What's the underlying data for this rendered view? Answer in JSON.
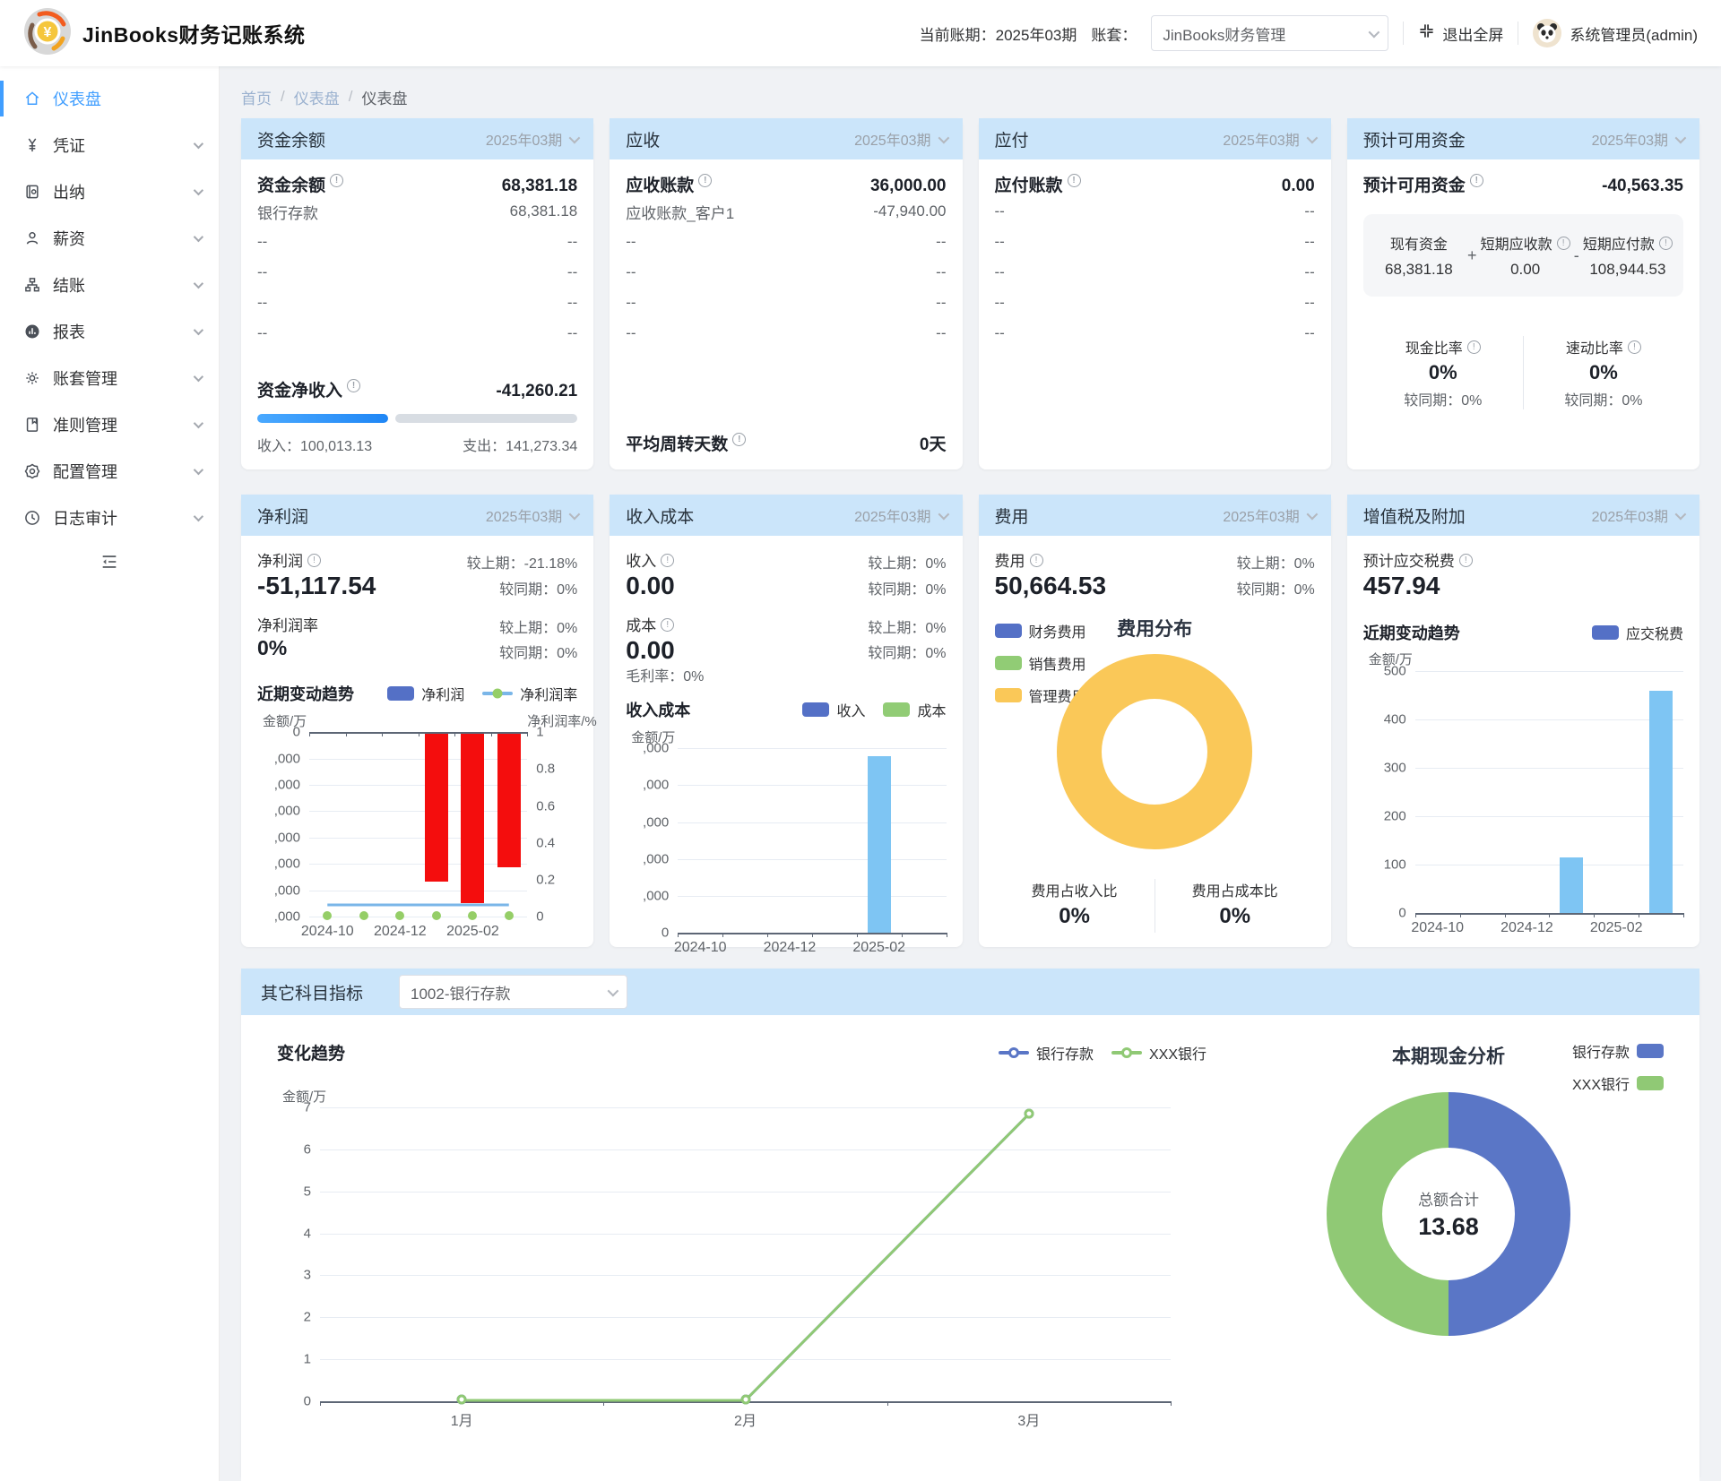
{
  "header": {
    "app_title": "JinBooks财务记账系统",
    "current_period_label": "当前账期：",
    "current_period": "2025年03期",
    "book_label": "账套：",
    "book_value": "JinBooks财务管理",
    "exit_fullscreen": "退出全屏",
    "user_name": "系统管理员(admin)"
  },
  "sidebar": {
    "items": [
      {
        "label": "仪表盘"
      },
      {
        "label": "凭证"
      },
      {
        "label": "出纳"
      },
      {
        "label": "薪资"
      },
      {
        "label": "结账"
      },
      {
        "label": "报表"
      },
      {
        "label": "账套管理"
      },
      {
        "label": "准则管理"
      },
      {
        "label": "配置管理"
      },
      {
        "label": "日志审计"
      }
    ]
  },
  "breadcrumb": {
    "home": "首页",
    "sep1": "/",
    "level1": "仪表盘",
    "sep2": "/",
    "current": "仪表盘"
  },
  "cards": {
    "fund": {
      "title": "资金余额",
      "period": "2025年03期",
      "main_label": "资金余额",
      "main_value": "68,381.18",
      "rows": [
        {
          "label": "银行存款",
          "value": "68,381.18"
        },
        {
          "label": "--",
          "value": "--"
        },
        {
          "label": "--",
          "value": "--"
        },
        {
          "label": "--",
          "value": "--"
        },
        {
          "label": "--",
          "value": "--"
        }
      ],
      "net_label": "资金净收入",
      "net_value": "-41,260.21",
      "income_label": "收入：",
      "income_value": "100,013.13",
      "expense_label": "支出：",
      "expense_value": "141,273.34",
      "income_pct": 41
    },
    "receivable": {
      "title": "应收",
      "period": "2025年03期",
      "main_label": "应收账款",
      "main_value": "36,000.00",
      "rows": [
        {
          "label": "应收账款_客户1",
          "value": "-47,940.00"
        },
        {
          "label": "--",
          "value": "--"
        },
        {
          "label": "--",
          "value": "--"
        },
        {
          "label": "--",
          "value": "--"
        },
        {
          "label": "--",
          "value": "--"
        }
      ],
      "turnover_label": "平均周转天数",
      "turnover_value": "0天"
    },
    "payable": {
      "title": "应付",
      "period": "2025年03期",
      "main_label": "应付账款",
      "main_value": "0.00",
      "rows": [
        {
          "label": "--",
          "value": "--"
        },
        {
          "label": "--",
          "value": "--"
        },
        {
          "label": "--",
          "value": "--"
        },
        {
          "label": "--",
          "value": "--"
        },
        {
          "label": "--",
          "value": "--"
        }
      ]
    },
    "available": {
      "title": "预计可用资金",
      "period": "2025年03期",
      "main_label": "预计可用资金",
      "main_value": "-40,563.35",
      "formula": {
        "a_label": "现有资金",
        "a_value": "68,381.18",
        "plus": "+",
        "b_label": "短期应收款",
        "b_value": "0.00",
        "minus": "-",
        "c_label": "短期应付款",
        "c_value": "108,944.53"
      },
      "cash_ratio_label": "现金比率",
      "cash_ratio_value": "0%",
      "cash_ratio_sub": "较同期：0%",
      "quick_ratio_label": "速动比率",
      "quick_ratio_value": "0%",
      "quick_ratio_sub": "较同期：0%"
    },
    "profit": {
      "title": "净利润",
      "period": "2025年03期",
      "main_label": "净利润",
      "main_value": "-51,117.54",
      "main_stat1": "较上期：-21.18%",
      "main_stat2": "较同期：0%",
      "rate_label": "净利润率",
      "rate_value": "0%",
      "rate_stat1": "较上期：0%",
      "rate_stat2": "较同期：0%",
      "trend_title": "近期变动趋势",
      "legend1": "净利润",
      "legend2": "净利润率"
    },
    "income_cost": {
      "title": "收入成本",
      "period": "2025年03期",
      "income_label": "收入",
      "income_value": "0.00",
      "income_stat1": "较上期：0%",
      "income_stat2": "较同期：0%",
      "cost_label": "成本",
      "cost_value": "0.00",
      "cost_stat1": "较上期：0%",
      "cost_stat2": "较同期：0%",
      "margin_label": "毛利率：0%",
      "trend_title": "收入成本",
      "legend1": "收入",
      "legend2": "成本"
    },
    "expense": {
      "title": "费用",
      "period": "2025年03期",
      "main_label": "费用",
      "main_value": "50,664.53",
      "stat1": "较上期：0%",
      "stat2": "较同期：0%",
      "legend1": "财务费用",
      "legend2": "销售费用",
      "legend3": "管理费用",
      "donut_title": "费用分布",
      "ratio1_label": "费用占收入比",
      "ratio1_value": "0%",
      "ratio2_label": "费用占成本比",
      "ratio2_value": "0%"
    },
    "tax": {
      "title": "增值税及附加",
      "period": "2025年03期",
      "main_label": "预计应交税费",
      "main_value": "457.94",
      "trend_title": "近期变动趋势",
      "legend1": "应交税费"
    }
  },
  "other": {
    "title": "其它科目指标",
    "select_value": "1002-银行存款",
    "trend_title": "变化趋势",
    "legend1": "银行存款",
    "legend2": "XXX银行",
    "donut_title": "本期现金分析",
    "donut_legend1": "银行存款",
    "donut_legend2": "XXX银行",
    "center_label": "总额合计",
    "center_value": "13.68"
  },
  "colors": {
    "accent": "#409eff",
    "card_header_bg": "#cbe5fa",
    "bar_red": "#f40d0d",
    "bar_lightblue": "#7ec5f3",
    "series_blue": "#5470c6",
    "series_green": "#91cc75",
    "series_yellow": "#fac858",
    "donut_blue": "#5a76c6",
    "donut_green": "#90c975",
    "profit_line": "#7ab6e8",
    "profit_dot": "#95ce67"
  },
  "chart_data": [
    {
      "id": "profit_trend",
      "type": "bar",
      "categories": [
        "2024-10",
        "2024-11",
        "2024-12",
        "2025-01",
        "2025-02",
        "2025-03"
      ],
      "series": [
        {
          "name": "净利润",
          "color": "#f40d0d",
          "values": [
            0,
            0,
            0,
            -56700,
            -64854,
            -51117.54
          ]
        }
      ],
      "line_series": {
        "name": "净利润率",
        "values": [
          0,
          0,
          0,
          0,
          0,
          0
        ],
        "line_color": "#7ab6e8",
        "dot_color": "#95ce67",
        "dot_style": "solid",
        "min": 0,
        "max": 1
      },
      "left_axis": {
        "title": "金额/万",
        "tick_labels": [
          "0",
          ",000",
          ",000",
          ",000",
          ",000",
          ",000",
          ",000",
          ",000"
        ],
        "min": -70000,
        "max": 0
      },
      "right_axis": {
        "title": "净利润率/%",
        "tick_labels": [
          "1",
          "0.8",
          "0.6",
          "0.4",
          "0.2",
          "0"
        ]
      },
      "x_ticks": [
        {
          "slot": 0,
          "label": "2024-10"
        },
        {
          "slot": 2,
          "label": "2024-12"
        },
        {
          "slot": 4,
          "label": "2025-02"
        }
      ],
      "baseline": "top",
      "grid": true,
      "legend_position": "top-right"
    },
    {
      "id": "income_cost_trend",
      "type": "bar",
      "categories": [
        "2024-10",
        "2024-11",
        "2024-12",
        "2025-01",
        "2025-02",
        "2025-03"
      ],
      "series": [
        {
          "name": "收入",
          "color": "#7ec5f3",
          "values": [
            0,
            0,
            0,
            0,
            47940,
            0
          ]
        },
        {
          "name": "成本",
          "color": "#91cc75",
          "values": [
            0,
            0,
            0,
            0,
            0,
            0
          ]
        }
      ],
      "left_axis": {
        "title": "金额/万",
        "tick_labels": [
          ",000",
          ",000",
          ",000",
          ",000",
          ",000",
          "0"
        ],
        "min": 0,
        "max": 50000
      },
      "x_ticks": [
        {
          "slot": 0,
          "label": "2024-10"
        },
        {
          "slot": 2,
          "label": "2024-12"
        },
        {
          "slot": 4,
          "label": "2025-02"
        }
      ],
      "baseline": "bottom",
      "grid": true
    },
    {
      "id": "expense_distribution",
      "type": "pie",
      "title": "费用分布",
      "slices": [
        {
          "name": "财务费用",
          "value": 0,
          "color": "#5470c6"
        },
        {
          "name": "销售费用",
          "value": 0,
          "color": "#91cc75"
        },
        {
          "name": "管理费用",
          "value": 100,
          "color": "#fac858"
        }
      ]
    },
    {
      "id": "tax_trend",
      "type": "bar",
      "categories": [
        "2024-10",
        "2024-11",
        "2024-12",
        "2025-01",
        "2025-02",
        "2025-03"
      ],
      "series": [
        {
          "name": "应交税费",
          "color": "#7ec5f3",
          "values": [
            0,
            0,
            0,
            115,
            0,
            457.94
          ]
        }
      ],
      "left_axis": {
        "title": "金额/万",
        "tick_labels": [
          "500",
          "400",
          "300",
          "200",
          "100",
          "0"
        ],
        "min": 0,
        "max": 500
      },
      "x_ticks": [
        {
          "slot": 0,
          "label": "2024-10"
        },
        {
          "slot": 2,
          "label": "2024-12"
        },
        {
          "slot": 4,
          "label": "2025-02"
        }
      ],
      "baseline": "bottom",
      "grid": true
    },
    {
      "id": "subject_trend",
      "type": "line",
      "categories": [
        "1月",
        "2月",
        "3月"
      ],
      "series": [
        {
          "name": "银行存款",
          "color": "#5a76c6",
          "values": [
            0,
            0,
            6.84
          ],
          "dot_style": "hollow"
        },
        {
          "name": "XXX银行",
          "color": "#90c975",
          "values": [
            0,
            0,
            6.84
          ],
          "dot_style": "hollow"
        }
      ],
      "left_axis": {
        "title": "金额/万",
        "tick_labels": [
          "7",
          "6",
          "5",
          "4",
          "3",
          "2",
          "1",
          "0"
        ],
        "min": 0,
        "max": 7
      },
      "x_ticks": [
        {
          "slot": 0,
          "label": "1月"
        },
        {
          "slot": 1,
          "label": "2月"
        },
        {
          "slot": 2,
          "label": "3月"
        }
      ],
      "baseline": "bottom",
      "grid": true
    },
    {
      "id": "cash_analysis",
      "type": "pie",
      "title": "本期现金分析",
      "center_label": "总额合计",
      "center_value": 13.68,
      "slices": [
        {
          "name": "银行存款",
          "value": 6.84,
          "color": "#5a76c6"
        },
        {
          "name": "XXX银行",
          "value": 6.84,
          "color": "#90c975"
        }
      ],
      "legend_position": "top-right"
    }
  ]
}
